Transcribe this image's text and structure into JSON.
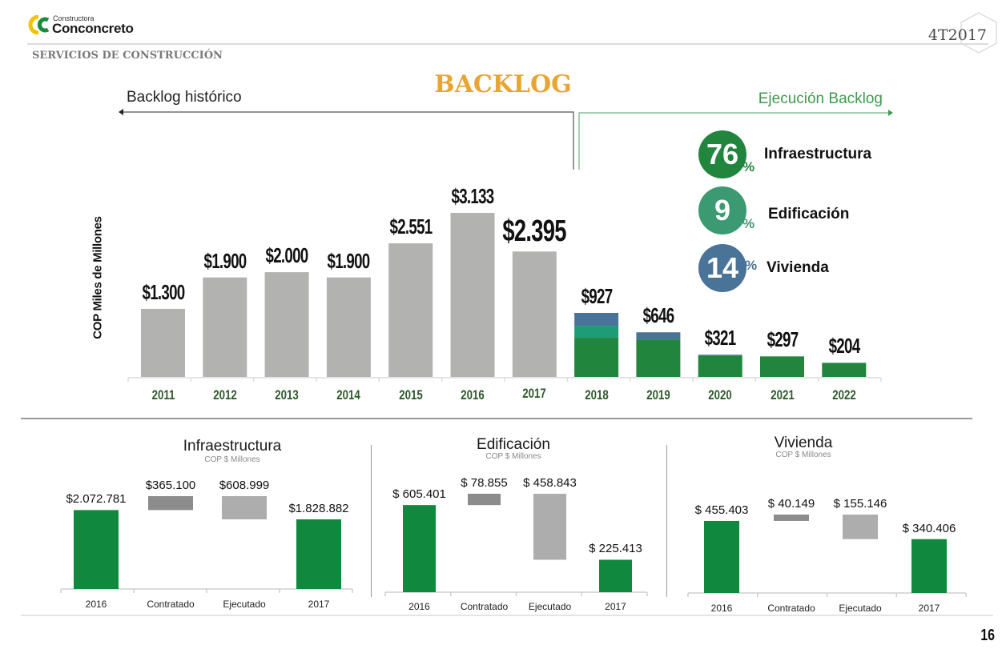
{
  "header": {
    "logo_small": "Constructora",
    "logo_big": "Conconcreto",
    "section": "SERVICIOS DE CONSTRUCCIÓN",
    "quarter": "4T2017",
    "page_number": "16"
  },
  "colors": {
    "title": "#e8a531",
    "historic_bar": "#b2b2b1",
    "infra": "#21853e",
    "edif": "#1e9c76",
    "vivienda": "#4a7398",
    "waterfall_total": "#10893f",
    "contratado": "#8c8c8c",
    "ejecutado": "#adadad",
    "year_label": "#2d5a2a",
    "exec_arrow": "#3e9a4e"
  },
  "main": {
    "title": "BACKLOG",
    "historic_label": "Backlog histórico",
    "execution_label": "Ejecución Backlog",
    "badges": [
      {
        "value": "76",
        "suffix": "%",
        "label": "Infraestructura",
        "color": "#21853e"
      },
      {
        "value": "9",
        "suffix": "%",
        "label": "Edificación",
        "color": "#3b9a72"
      },
      {
        "value": "14",
        "suffix": "%",
        "label": "Vivienda",
        "color": "#4a7398"
      }
    ]
  },
  "chart_data": [
    {
      "type": "bar",
      "title": "BACKLOG",
      "ylabel": "COP Miles de Millones",
      "xlabel": "",
      "categories": [
        "2011",
        "2012",
        "2013",
        "2014",
        "2015",
        "2016",
        "2017",
        "2018",
        "2019",
        "2020",
        "2021",
        "2022"
      ],
      "values": [
        1300,
        1900,
        2000,
        1900,
        2551,
        3133,
        2395,
        927,
        646,
        321,
        297,
        204
      ],
      "labels": [
        "$1.300",
        "$1.900",
        "$2.000",
        "$1.900",
        "$2.551",
        "$3.133",
        "$2.395",
        "$927",
        "$646",
        "$321",
        "$297",
        "$204"
      ],
      "stacked_execution": {
        "categories": [
          "2018",
          "2019",
          "2020",
          "2021",
          "2022"
        ],
        "series": [
          {
            "name": "Infraestructura",
            "values": [
              567,
              543,
              308,
              297,
              204
            ]
          },
          {
            "name": "Edificación",
            "values": [
              174,
              0,
              0,
              0,
              0
            ]
          },
          {
            "name": "Vivienda",
            "values": [
              186,
              103,
              13,
              0,
              0
            ]
          }
        ]
      },
      "grid": false,
      "legend": "none"
    },
    {
      "type": "bar",
      "subtype": "waterfall",
      "title": "Infraestructura",
      "subtitle": "COP $ Millones",
      "categories": [
        "2016",
        "Contratado",
        "Ejecutado",
        "2017"
      ],
      "values": [
        2072781,
        365100,
        -608999,
        1828882
      ],
      "labels": [
        "$2.072.781",
        "$365.100",
        "$608.999",
        "$1.828.882"
      ]
    },
    {
      "type": "bar",
      "subtype": "waterfall",
      "title": "Edificación",
      "subtitle": "COP $ Millones",
      "categories": [
        "2016",
        "Contratado",
        "Ejecutado",
        "2017"
      ],
      "values": [
        605401,
        78855,
        -458843,
        225413
      ],
      "labels": [
        "$ 605.401",
        "$ 78.855",
        "$ 458.843",
        "$ 225.413"
      ]
    },
    {
      "type": "bar",
      "subtype": "waterfall",
      "title": "Vivienda",
      "subtitle": "COP $ Millones",
      "categories": [
        "2016",
        "Contratado",
        "Ejecutado",
        "2017"
      ],
      "values": [
        455403,
        40149,
        -155146,
        340406
      ],
      "labels": [
        "$ 455.403",
        "$ 40.149",
        "$ 155.146",
        "$ 340.406"
      ]
    }
  ]
}
